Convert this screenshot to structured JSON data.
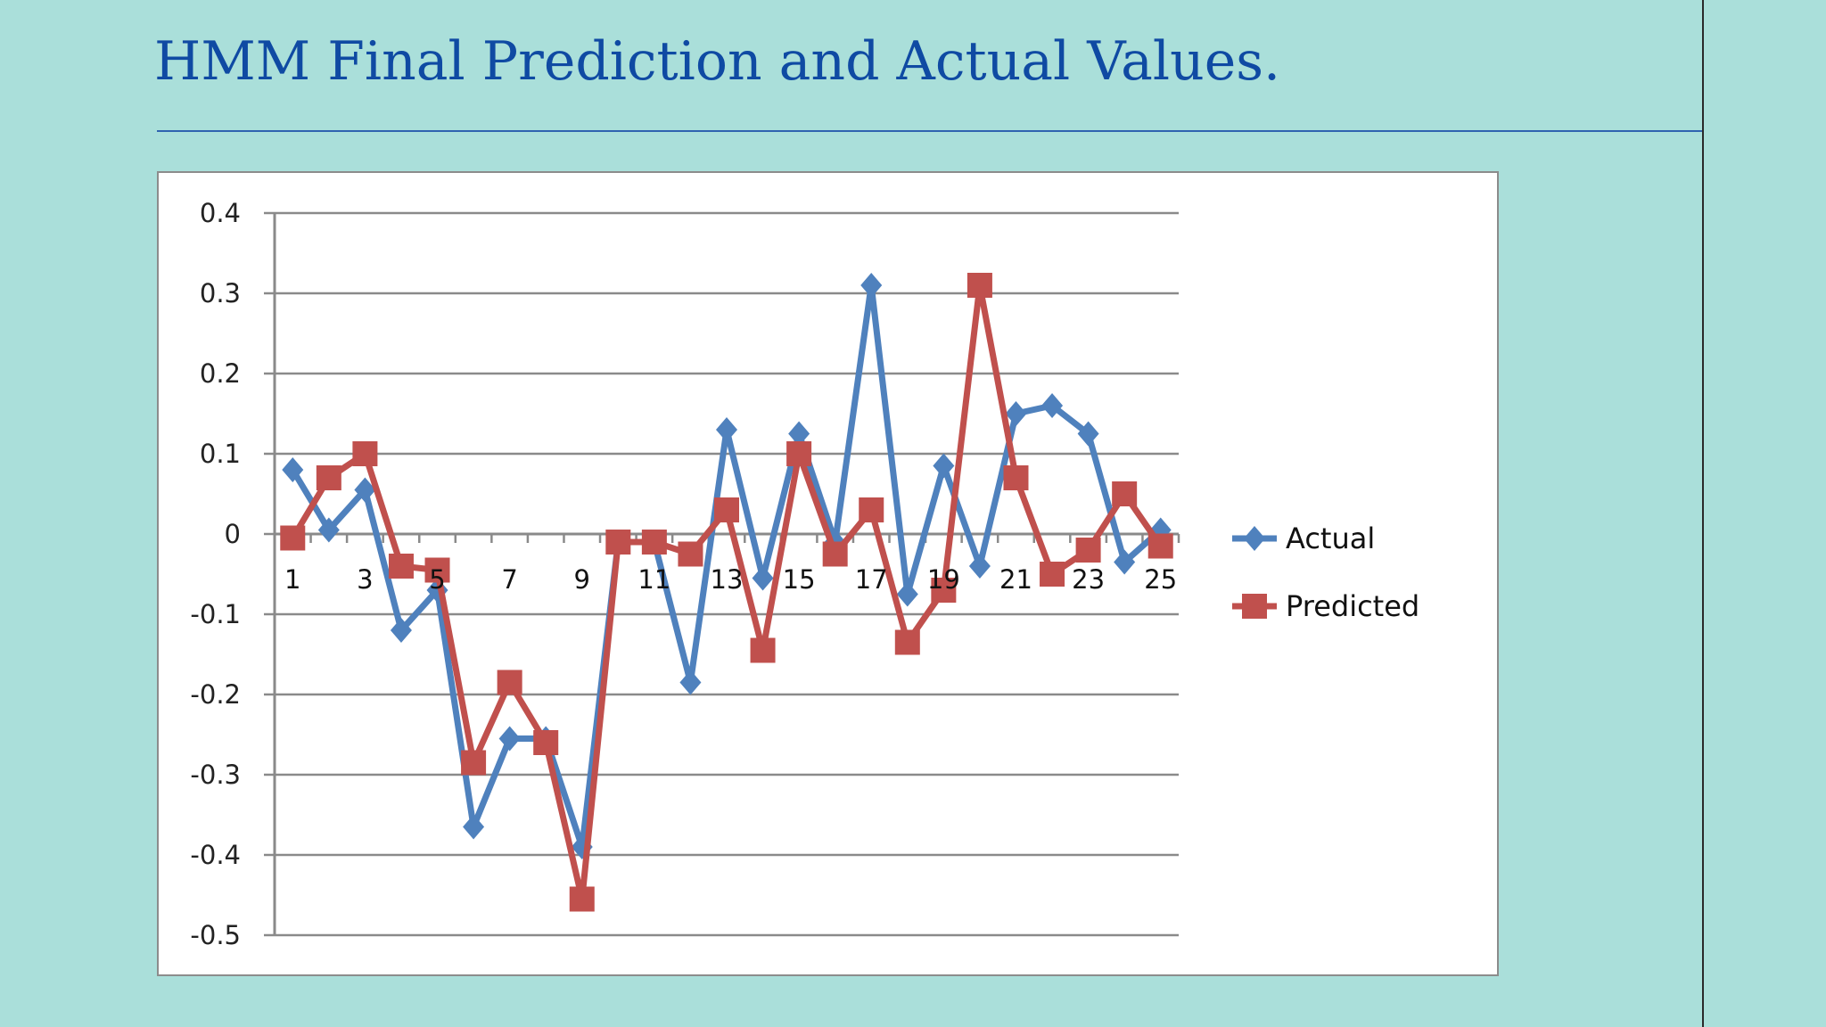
{
  "slide": {
    "title": "HMM Final Prediction and Actual Values."
  },
  "colors": {
    "background": "#aadfda",
    "title": "#0f4aa3",
    "actual": "#4f81bd",
    "predicted": "#c0504d"
  },
  "chart_data": {
    "type": "line",
    "title": "",
    "xlabel": "",
    "ylabel": "",
    "x": [
      1,
      2,
      3,
      4,
      5,
      6,
      7,
      8,
      9,
      10,
      11,
      12,
      13,
      14,
      15,
      16,
      17,
      18,
      19,
      20,
      21,
      22,
      23,
      24,
      25
    ],
    "x_tick_labels": [
      "1",
      "3",
      "5",
      "7",
      "9",
      "11",
      "13",
      "15",
      "17",
      "19",
      "21",
      "23",
      "25"
    ],
    "y_tick_labels": [
      "0.4",
      "0.3",
      "0.2",
      "0.1",
      "0",
      "-0.1",
      "-0.2",
      "-0.3",
      "-0.4",
      "-0.5"
    ],
    "ylim": [
      -0.5,
      0.4
    ],
    "grid": true,
    "legend_position": "right",
    "series": [
      {
        "name": "Actual",
        "marker": "diamond",
        "values": [
          0.08,
          0.005,
          0.055,
          -0.12,
          -0.07,
          -0.365,
          -0.255,
          -0.255,
          -0.39,
          -0.01,
          -0.01,
          -0.185,
          0.13,
          -0.055,
          0.125,
          -0.01,
          0.31,
          -0.075,
          0.085,
          -0.04,
          0.15,
          0.16,
          0.125,
          -0.035,
          0.005
        ]
      },
      {
        "name": "Predicted",
        "marker": "square",
        "values": [
          -0.005,
          0.07,
          0.1,
          -0.04,
          -0.045,
          -0.285,
          -0.185,
          -0.26,
          -0.455,
          -0.01,
          -0.01,
          -0.025,
          0.03,
          -0.145,
          0.1,
          -0.025,
          0.03,
          -0.135,
          -0.07,
          0.31,
          0.07,
          -0.05,
          -0.02,
          0.05,
          -0.015
        ]
      }
    ]
  }
}
